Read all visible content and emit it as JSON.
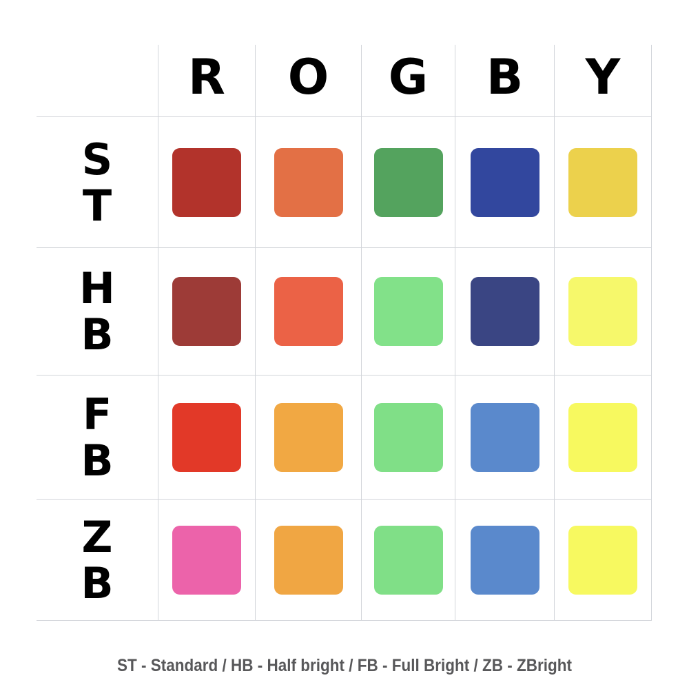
{
  "caption": "ST - Standard / HB - Half bright / FB - Full Bright / ZB - ZBright",
  "line_color": "#d2d5da",
  "text_color": "#000000",
  "caption_color": "#58585a",
  "chart_data": {
    "type": "heatmap",
    "title": "",
    "columns": [
      "R",
      "O",
      "G",
      "B",
      "Y"
    ],
    "rows": [
      {
        "code": "ST",
        "letters": [
          "S",
          "T"
        ],
        "name": "Standard"
      },
      {
        "code": "HB",
        "letters": [
          "H",
          "B"
        ],
        "name": "Half bright"
      },
      {
        "code": "FB",
        "letters": [
          "F",
          "B"
        ],
        "name": "Full Bright"
      },
      {
        "code": "ZB",
        "letters": [
          "Z",
          "B"
        ],
        "name": "ZBright"
      }
    ],
    "cell_colors": [
      [
        "#B2332B",
        "#E37045",
        "#54A35E",
        "#32479E",
        "#ECD14C"
      ],
      [
        "#9D3B37",
        "#EB6246",
        "#82E189",
        "#3A4583",
        "#F6F86B"
      ],
      [
        "#E23928",
        "#F1A843",
        "#80DF87",
        "#5A89CC",
        "#F7F95F"
      ],
      [
        "#EC63AA",
        "#F0A643",
        "#80DF87",
        "#5A89CC",
        "#F7F960"
      ]
    ],
    "legend_position": "bottom",
    "grid": true,
    "caption": "ST - Standard / HB - Half bright / FB - Full Bright / ZB - ZBright"
  }
}
